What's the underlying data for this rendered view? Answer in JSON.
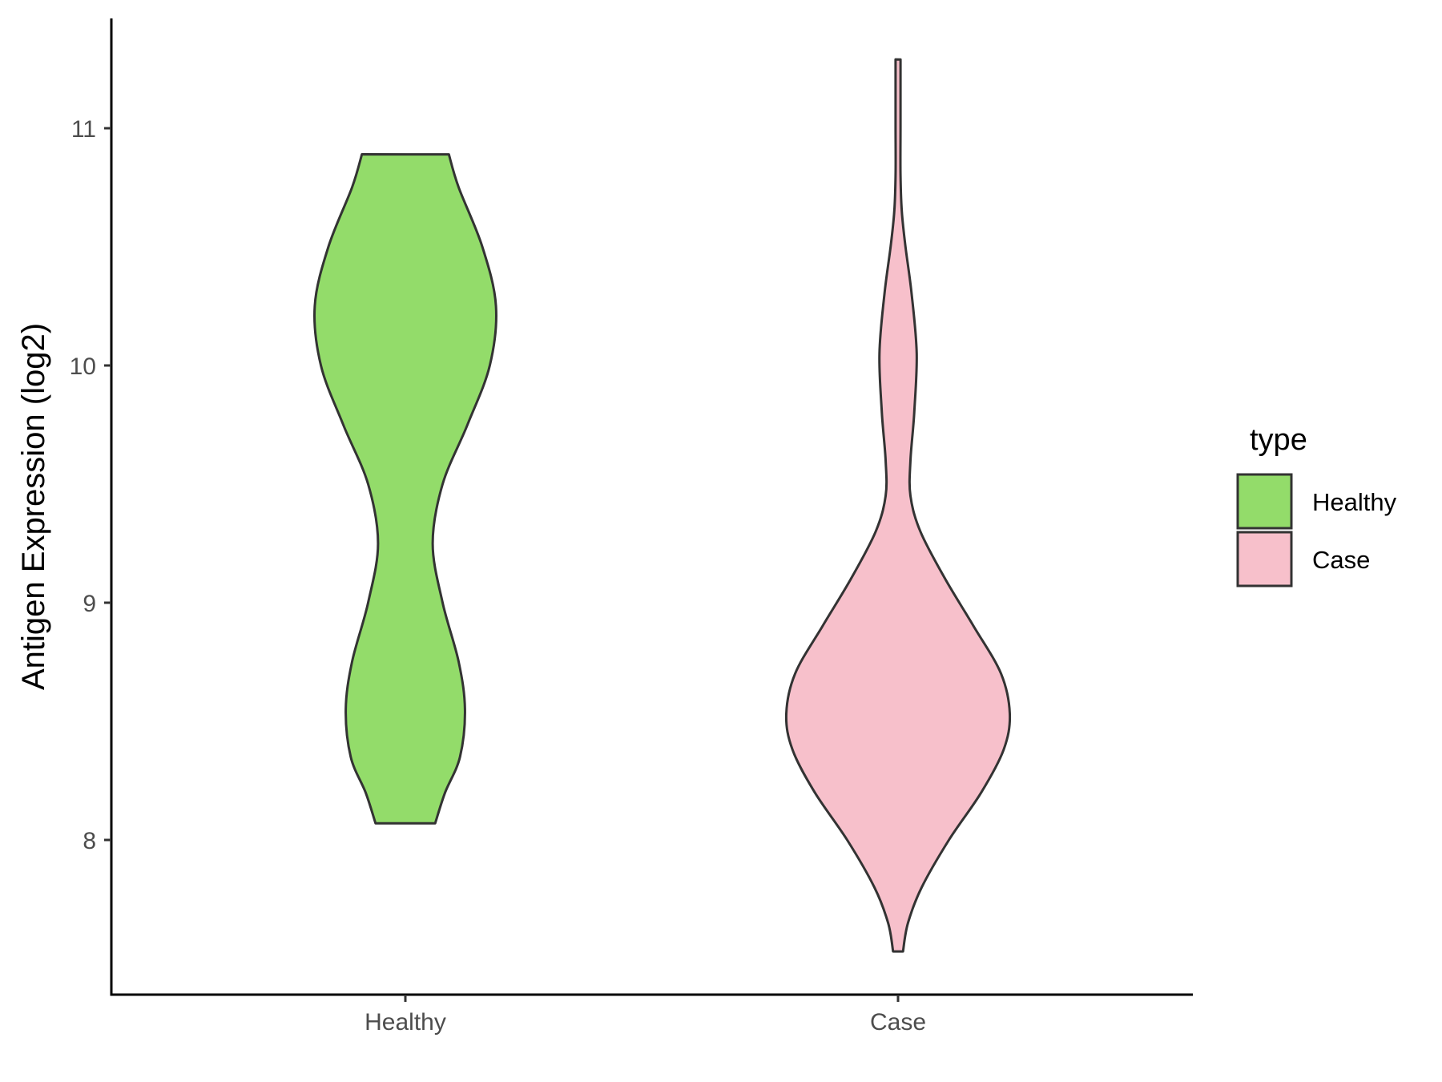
{
  "chart_data": {
    "type": "violin",
    "xlabel": "",
    "ylabel": "Antigen Expression (log2)",
    "ylim": [
      7.35,
      11.47
    ],
    "yticks": [
      8,
      9,
      10,
      11
    ],
    "ytick_labels": [
      "8",
      "9",
      "10",
      "11"
    ],
    "categories": [
      "Healthy",
      "Case"
    ],
    "legend": {
      "title": "type",
      "position": "right",
      "entries": [
        {
          "label": "Healthy",
          "color": "#93DC6A"
        },
        {
          "label": "Case",
          "color": "#F7C0CB"
        }
      ]
    },
    "grid": false,
    "series": [
      {
        "name": "Healthy",
        "color": "#93DC6A",
        "min": 8.07,
        "max": 10.89,
        "density": [
          [
            8.07,
            0.24
          ],
          [
            8.2,
            0.32
          ],
          [
            8.35,
            0.44
          ],
          [
            8.55,
            0.48
          ],
          [
            8.75,
            0.43
          ],
          [
            9.0,
            0.3
          ],
          [
            9.25,
            0.22
          ],
          [
            9.5,
            0.3
          ],
          [
            9.75,
            0.5
          ],
          [
            10.0,
            0.68
          ],
          [
            10.25,
            0.73
          ],
          [
            10.5,
            0.62
          ],
          [
            10.75,
            0.43
          ],
          [
            10.89,
            0.35
          ]
        ]
      },
      {
        "name": "Case",
        "color": "#F7C0CB",
        "min": 7.53,
        "max": 11.29,
        "density": [
          [
            7.53,
            0.04
          ],
          [
            7.65,
            0.08
          ],
          [
            7.8,
            0.19
          ],
          [
            8.0,
            0.41
          ],
          [
            8.2,
            0.67
          ],
          [
            8.38,
            0.85
          ],
          [
            8.53,
            0.9
          ],
          [
            8.7,
            0.83
          ],
          [
            8.9,
            0.61
          ],
          [
            9.1,
            0.38
          ],
          [
            9.3,
            0.18
          ],
          [
            9.45,
            0.1
          ],
          [
            9.6,
            0.1
          ],
          [
            9.8,
            0.13
          ],
          [
            10.05,
            0.15
          ],
          [
            10.3,
            0.11
          ],
          [
            10.5,
            0.06
          ],
          [
            10.65,
            0.03
          ],
          [
            10.8,
            0.02
          ],
          [
            11.0,
            0.02
          ],
          [
            11.15,
            0.02
          ],
          [
            11.29,
            0.02
          ]
        ]
      }
    ]
  }
}
